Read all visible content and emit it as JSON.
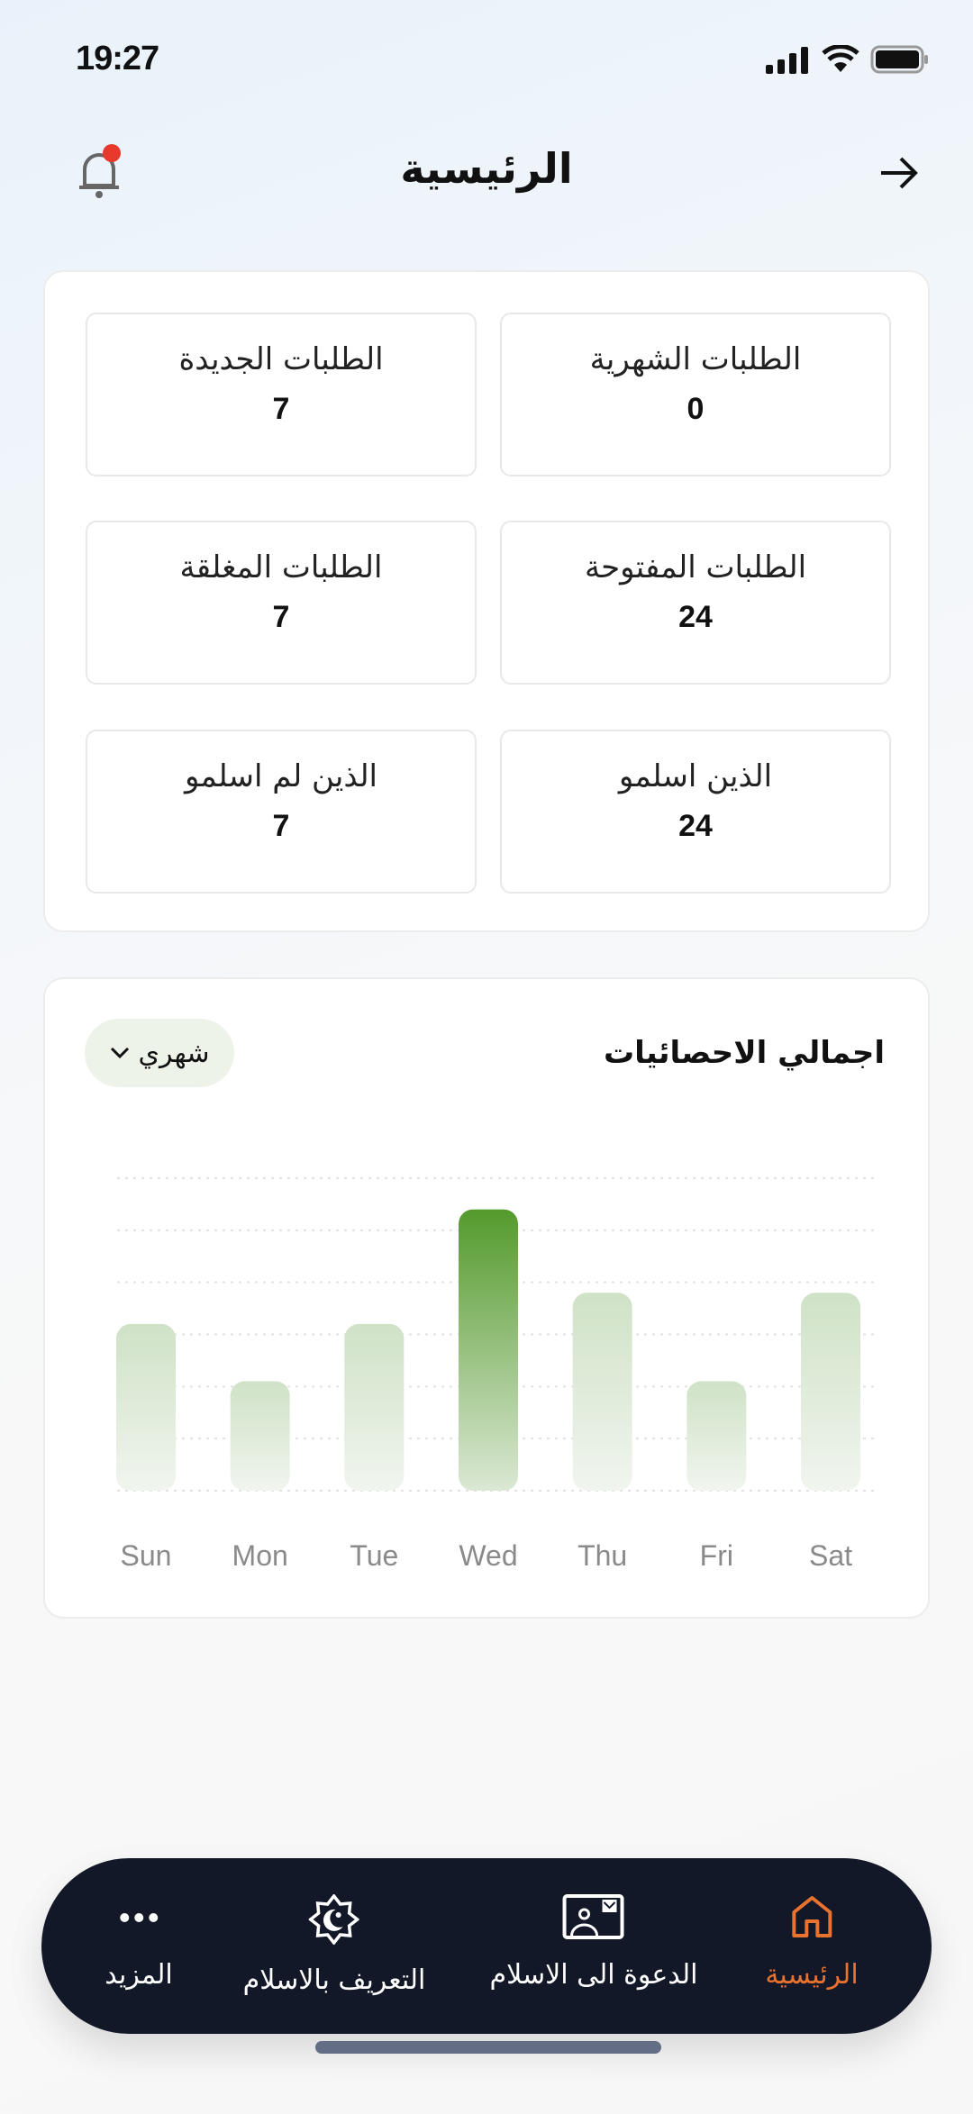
{
  "status_bar": {
    "time": "19:27"
  },
  "header": {
    "title": "الرئيسية",
    "has_notification": true
  },
  "stats": [
    {
      "label": "الطلبات الشهرية",
      "value": "0"
    },
    {
      "label": "الطلبات الجديدة",
      "value": "7"
    },
    {
      "label": "الطلبات المفتوحة",
      "value": "24"
    },
    {
      "label": "الطلبات المغلقة",
      "value": "7"
    },
    {
      "label": "الذين اسلمو",
      "value": "24"
    },
    {
      "label": "الذين لم اسلمو",
      "value": "7"
    }
  ],
  "chart_card": {
    "title": "اجمالي الاحصائيات",
    "period": "شهري"
  },
  "chart_data": {
    "type": "bar",
    "categories": [
      "Sun",
      "Mon",
      "Tue",
      "Wed",
      "Thu",
      "Fri",
      "Sat"
    ],
    "values": [
      3.2,
      2.1,
      3.2,
      5.4,
      3.8,
      2.1,
      3.8
    ],
    "highlighted": "Wed",
    "ylim": [
      0,
      6
    ],
    "grid": true,
    "colors": {
      "bar": "#cfe2c6",
      "highlight": "#549a2c"
    }
  },
  "nav": {
    "active_color": "#e8722e",
    "items": [
      {
        "label": "الرئيسية",
        "icon": "home-icon",
        "active": true
      },
      {
        "label": "الدعوة الى الاسلام",
        "icon": "id-card-icon"
      },
      {
        "label": "التعريف بالاسلام",
        "icon": "crescent-star-icon"
      },
      {
        "label": "المزيد",
        "icon": "more-icon"
      }
    ]
  }
}
